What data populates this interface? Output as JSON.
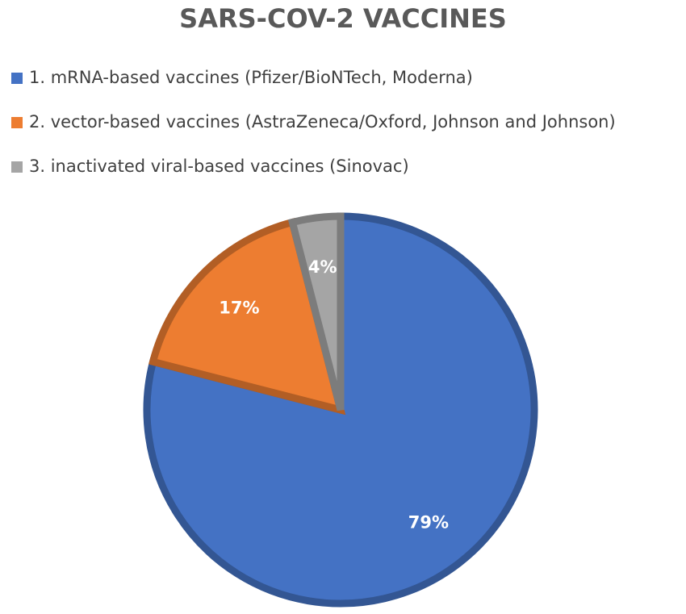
{
  "chart_data": {
    "type": "pie",
    "title": "SARS-COV-2 VACCINES",
    "categories": [
      "1. mRNA-based vaccines (Pfizer/BioNTech, Moderna)",
      "2. vector-based vaccines (AstraZeneca/Oxford, Johnson and Johnson)",
      "3. inactivated viral-based vaccines (Sinovac)"
    ],
    "values": [
      79,
      17,
      4
    ],
    "value_labels": [
      "79%",
      "17%",
      "4%"
    ],
    "colors": [
      "#4472c4",
      "#ed7d31",
      "#a5a5a5"
    ]
  }
}
